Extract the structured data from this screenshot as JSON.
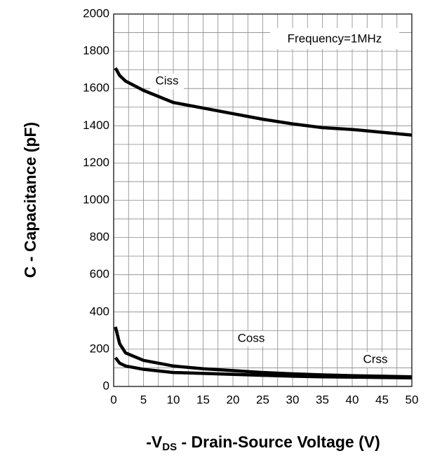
{
  "chart_data": {
    "type": "line",
    "xlabel": {
      "prefix": "-V",
      "subscript": "DS",
      "suffix": " - Drain-Source Voltage (V)"
    },
    "ylabel": "C - Capacitance (pF)",
    "annotation": "Frequency=1MHz",
    "x": [
      0.3,
      1,
      2,
      5,
      10,
      15,
      20,
      25,
      30,
      35,
      40,
      45,
      50
    ],
    "series": [
      {
        "name": "Ciss",
        "color": "#000000",
        "values": [
          1710,
          1670,
          1640,
          1590,
          1525,
          1495,
          1465,
          1435,
          1410,
          1390,
          1380,
          1365,
          1350
        ]
      },
      {
        "name": "Coss",
        "color": "#000000",
        "values": [
          320,
          230,
          180,
          140,
          110,
          95,
          85,
          75,
          68,
          62,
          58,
          55,
          52
        ]
      },
      {
        "name": "Crss",
        "color": "#000000",
        "values": [
          155,
          125,
          110,
          92,
          75,
          70,
          65,
          60,
          55,
          52,
          50,
          48,
          46
        ]
      }
    ],
    "xlim": [
      0,
      50
    ],
    "xticks": [
      0,
      5,
      10,
      15,
      20,
      25,
      30,
      35,
      40,
      45,
      50
    ],
    "ylim": [
      0,
      2000
    ],
    "yticks": [
      0,
      200,
      400,
      600,
      800,
      1000,
      1200,
      1400,
      1600,
      1800,
      2000
    ],
    "grid": true,
    "minor_grid": true
  }
}
